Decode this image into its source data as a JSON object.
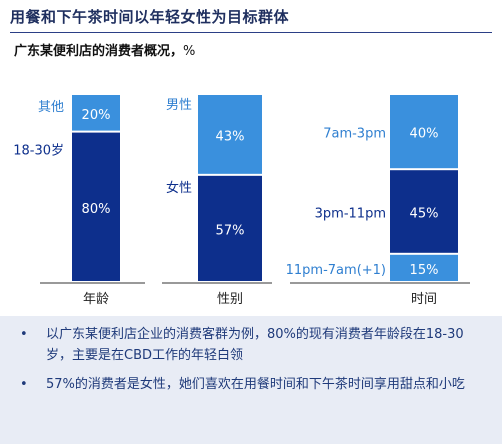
{
  "header": {
    "title": "用餐和下午茶时间以年轻女性为目标群体",
    "subtitle": "广东某便利店的消费者概况，",
    "unit": "%"
  },
  "colors": {
    "dark_blue": "#0d2f8c",
    "light_blue": "#3a90dd",
    "axis": "#333333",
    "note_bg": "#e8ecf5"
  },
  "chart_data": [
    {
      "type": "bar",
      "stacked": true,
      "category": "年龄",
      "series": [
        {
          "name": "18-30岁",
          "value": 80,
          "label": "80%",
          "color": "#0d2f8c"
        },
        {
          "name": "其他",
          "value": 20,
          "label": "20%",
          "color": "#3a90dd"
        }
      ],
      "ylim": [
        0,
        100
      ]
    },
    {
      "type": "bar",
      "stacked": true,
      "category": "性别",
      "series": [
        {
          "name": "女性",
          "value": 57,
          "label": "57%",
          "color": "#0d2f8c"
        },
        {
          "name": "男性",
          "value": 43,
          "label": "43%",
          "color": "#3a90dd"
        }
      ],
      "ylim": [
        0,
        100
      ]
    },
    {
      "type": "bar",
      "stacked": true,
      "category": "时间",
      "series": [
        {
          "name": "11pm-7am(+1)",
          "value": 15,
          "label": "15%",
          "color": "#3a90dd"
        },
        {
          "name": "3pm-11pm",
          "value": 45,
          "label": "45%",
          "color": "#0d2f8c"
        },
        {
          "name": "7am-3pm",
          "value": 40,
          "label": "40%",
          "color": "#3a90dd"
        }
      ],
      "ylim": [
        0,
        100
      ]
    }
  ],
  "notes": [
    {
      "bullet": "•",
      "text": "以广东某便利店企业的消费客群为例，80%的现有消费者年龄段在18-30岁，主要是在CBD工作的年轻白领"
    },
    {
      "bullet": "•",
      "text": "57%的消费者是女性，她们喜欢在用餐时间和下午茶时间享用甜点和小吃"
    }
  ]
}
